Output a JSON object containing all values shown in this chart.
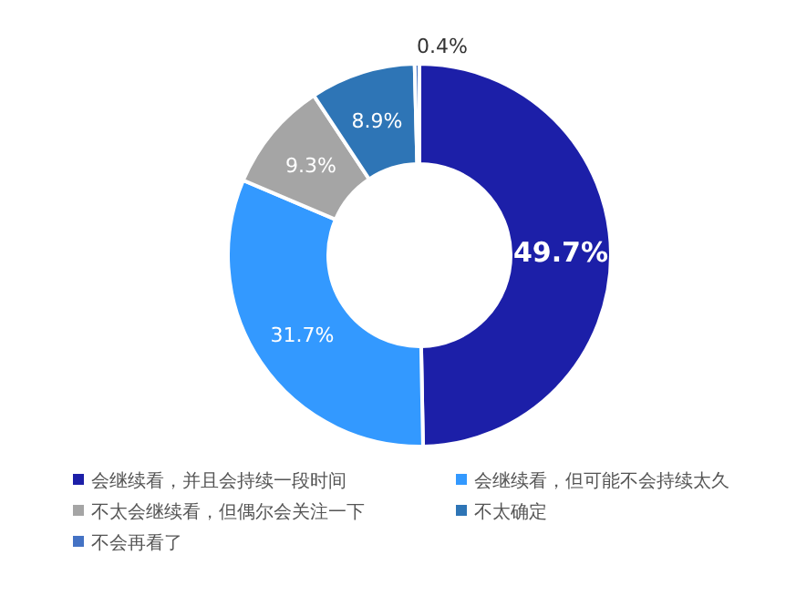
{
  "chart_data": {
    "type": "donut",
    "categories": [
      "会继续看，并且会持续一段时间",
      "会继续看，但可能不会持续太久",
      "不太会继续看，但偶尔会关注一下",
      "不太确定",
      "不会再看了"
    ],
    "values": [
      49.7,
      31.7,
      9.3,
      8.9,
      0.4
    ],
    "colors": [
      "#1c1fa8",
      "#3399ff",
      "#a5a5a5",
      "#2e75b6",
      "#4472c4"
    ],
    "value_labels": [
      "49.7%",
      "31.7%",
      "9.3%",
      "8.9%",
      "0.4%"
    ],
    "legend": "bottom"
  }
}
